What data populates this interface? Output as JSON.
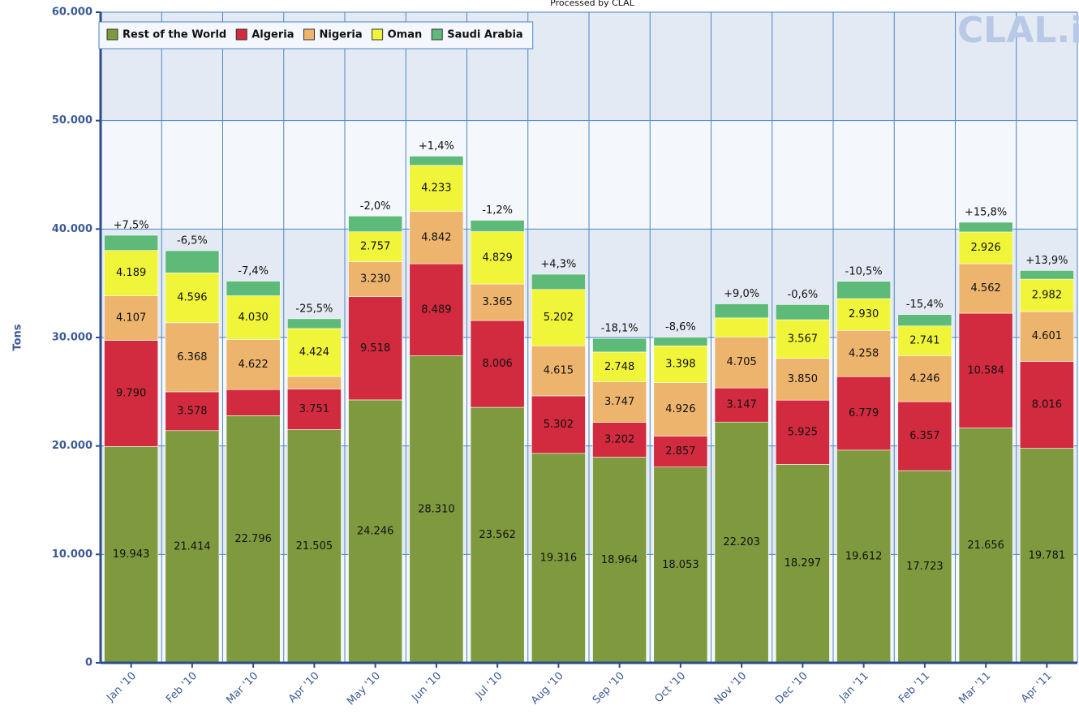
{
  "chart_data": {
    "type": "bar",
    "stacked": true,
    "title": "Processed by CLAL",
    "watermark": "CLAL.it",
    "y_label": "Tons",
    "categories": [
      "Jan '10",
      "Feb '10",
      "Mar '10",
      "Apr '10",
      "May '10",
      "Jun '10",
      "Jul '10",
      "Aug '10",
      "Sep '10",
      "Oct '10",
      "Nov '10",
      "Dec '10",
      "Jan '11",
      "Feb '11",
      "Mar '11",
      "Apr '11"
    ],
    "series": [
      {
        "name": "Rest of the World",
        "color": "#7f9a3e",
        "values": [
          19943,
          21414,
          22796,
          21505,
          24246,
          28310,
          23562,
          19316,
          18964,
          18053,
          22203,
          18297,
          19612,
          17723,
          21656,
          19781
        ],
        "value_labels": [
          "19.943",
          "21.414",
          "22.796",
          "21.505",
          "24.246",
          "28.310",
          "23.562",
          "19.316",
          "18.964",
          "18.053",
          "22.203",
          "18.297",
          "19.612",
          "17.723",
          "21.656",
          "19.781"
        ]
      },
      {
        "name": "Algeria",
        "color": "#d22a3e",
        "values": [
          9790,
          3578,
          2400,
          3751,
          9518,
          8489,
          8006,
          5302,
          3202,
          2857,
          3147,
          5925,
          6779,
          6357,
          10584,
          8016
        ],
        "value_labels": [
          "9.790",
          "3.578",
          null,
          "3.751",
          "9.518",
          "8.489",
          "8.006",
          "5.302",
          "3.202",
          "2.857",
          "3.147",
          "5.925",
          "6.779",
          "6.357",
          "10.584",
          "8.016"
        ]
      },
      {
        "name": "Nigeria",
        "color": "#edb46d",
        "values": [
          4107,
          6368,
          4622,
          1150,
          3230,
          4842,
          3365,
          4615,
          3747,
          4926,
          4705,
          3850,
          4258,
          4246,
          4562,
          4601
        ],
        "value_labels": [
          "4.107",
          "6.368",
          "4.622",
          null,
          "3.230",
          "4.842",
          "3.365",
          "4.615",
          "3.747",
          "4.926",
          "4.705",
          "3.850",
          "4.258",
          "4.246",
          "4.562",
          "4.601"
        ]
      },
      {
        "name": "Oman",
        "color": "#f0f53a",
        "values": [
          4189,
          4596,
          4030,
          4424,
          2757,
          4233,
          4829,
          5202,
          2748,
          3398,
          1750,
          3567,
          2930,
          2741,
          2926,
          2982
        ],
        "value_labels": [
          "4.189",
          "4.596",
          "4.030",
          "4.424",
          "2.757",
          "4.233",
          "4.829",
          "5.202",
          "2.748",
          "3.398",
          null,
          "3.567",
          "2.930",
          "2.741",
          "2.926",
          "2.982"
        ]
      },
      {
        "name": "Saudi Arabia",
        "color": "#5dba78",
        "values": [
          1400,
          2050,
          1350,
          900,
          1450,
          850,
          1050,
          1400,
          1250,
          800,
          1300,
          1400,
          1600,
          1050,
          900,
          800
        ],
        "value_labels": [
          null,
          null,
          null,
          null,
          null,
          null,
          null,
          null,
          null,
          null,
          null,
          null,
          null,
          null,
          null,
          null
        ]
      }
    ],
    "annotations": [
      "+7,5%",
      "-6,5%",
      "-7,4%",
      "-25,5%",
      "-2,0%",
      "+1,4%",
      "-1,2%",
      "+4,3%",
      "-18,1%",
      "-8,6%",
      "+9,0%",
      "-0,6%",
      "-10,5%",
      "-15,4%",
      "+15,8%",
      "+13,9%"
    ],
    "ylim": [
      0,
      60000
    ],
    "yticks": [
      {
        "value": 0,
        "label": "0"
      },
      {
        "value": 10000,
        "label": "10.000"
      },
      {
        "value": 20000,
        "label": "20.000"
      },
      {
        "value": 30000,
        "label": "30.000"
      },
      {
        "value": 40000,
        "label": "40.000"
      },
      {
        "value": 50000,
        "label": "50.000"
      },
      {
        "value": 60000,
        "label": "60.000"
      }
    ],
    "grid": true,
    "legend": "top-left"
  }
}
